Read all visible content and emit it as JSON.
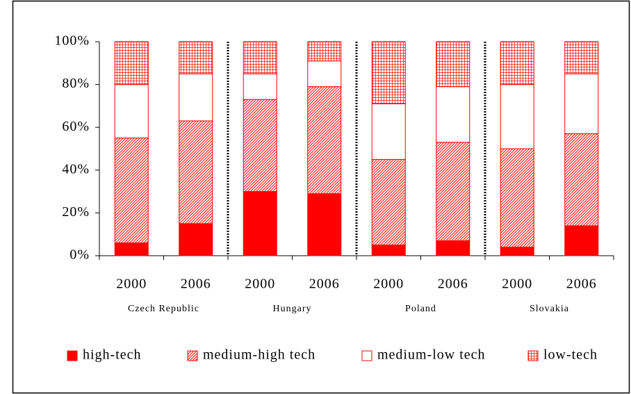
{
  "chart_data": {
    "type": "stacked-bar",
    "categories": [
      "2000",
      "2006",
      "2000",
      "2006",
      "2000",
      "2006",
      "2000",
      "2006"
    ],
    "groups": [
      "Czech Republic",
      "Hungary",
      "Poland",
      "Slovakia"
    ],
    "series": [
      {
        "name": "high-tech",
        "color": "#ff0000",
        "pattern": "solid",
        "values": [
          6,
          15,
          30,
          29,
          5,
          7,
          4,
          14
        ]
      },
      {
        "name": "medium-high tech",
        "color": "#ff0000",
        "pattern": "diagonal",
        "values": [
          49,
          48,
          43,
          50,
          40,
          46,
          46,
          43
        ]
      },
      {
        "name": "medium-low tech",
        "color": "#ff0000",
        "pattern": "none",
        "values": [
          25,
          22,
          12,
          12,
          26,
          26,
          30,
          28
        ]
      },
      {
        "name": "low-tech",
        "color": "#ff0000",
        "pattern": "grid",
        "values": [
          20,
          15,
          15,
          9,
          29,
          21,
          20,
          15
        ]
      }
    ],
    "ylim": [
      0,
      100
    ],
    "yticks": [
      {
        "value": 0,
        "label": "0%"
      },
      {
        "value": 20,
        "label": "20%"
      },
      {
        "value": 40,
        "label": "40%"
      },
      {
        "value": 60,
        "label": "60%"
      },
      {
        "value": 80,
        "label": "80%"
      },
      {
        "value": 100,
        "label": "100%"
      }
    ],
    "legend": "bottom"
  }
}
